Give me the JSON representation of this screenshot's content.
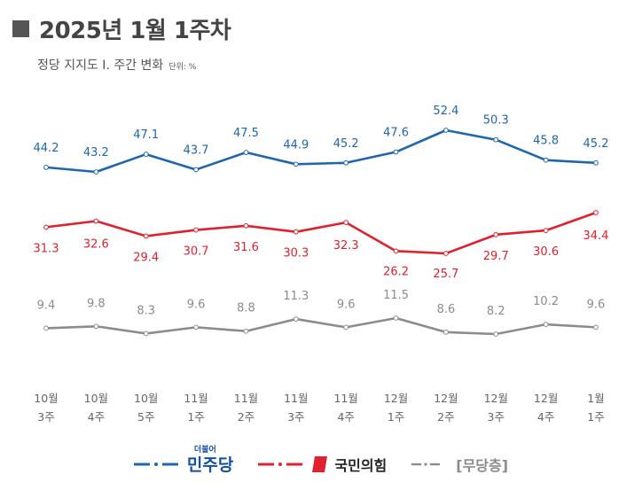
{
  "title": "2025년 1월 1주차",
  "subtitle": "정당 지지도 Ⅰ. 주간 변화",
  "unit": "단위: %",
  "colors": {
    "blue": "#1f66ad",
    "red": "#e0202f",
    "gray": "#8c8c8c"
  },
  "legend": {
    "democratic_label": "민주당",
    "democratic_mark": "더불어",
    "ppp_label": "국민의힘",
    "independent_label": "[무당층]"
  },
  "chart_data": {
    "type": "line",
    "categories": [
      [
        "10월",
        "3주"
      ],
      [
        "10월",
        "4주"
      ],
      [
        "10월",
        "5주"
      ],
      [
        "11월",
        "1주"
      ],
      [
        "11월",
        "2주"
      ],
      [
        "11월",
        "3주"
      ],
      [
        "11월",
        "4주"
      ],
      [
        "12월",
        "1주"
      ],
      [
        "12월",
        "2주"
      ],
      [
        "12월",
        "3주"
      ],
      [
        "12월",
        "4주"
      ],
      [
        "1월",
        "1주"
      ]
    ],
    "series": [
      {
        "name": "민주당",
        "color": "#1f66ad",
        "values": [
          44.2,
          43.2,
          47.1,
          43.7,
          47.5,
          44.9,
          45.2,
          47.6,
          52.4,
          50.3,
          45.8,
          45.2
        ]
      },
      {
        "name": "국민의힘",
        "color": "#e0202f",
        "values": [
          31.3,
          32.6,
          29.4,
          30.7,
          31.6,
          30.3,
          32.3,
          26.2,
          25.7,
          29.7,
          30.6,
          34.4
        ]
      },
      {
        "name": "[무당층]",
        "color": "#8c8c8c",
        "values": [
          9.4,
          9.8,
          8.3,
          9.6,
          8.8,
          11.3,
          9.6,
          11.5,
          8.6,
          8.2,
          10.2,
          9.6
        ]
      }
    ],
    "grid": false,
    "legend_position": "bottom"
  }
}
